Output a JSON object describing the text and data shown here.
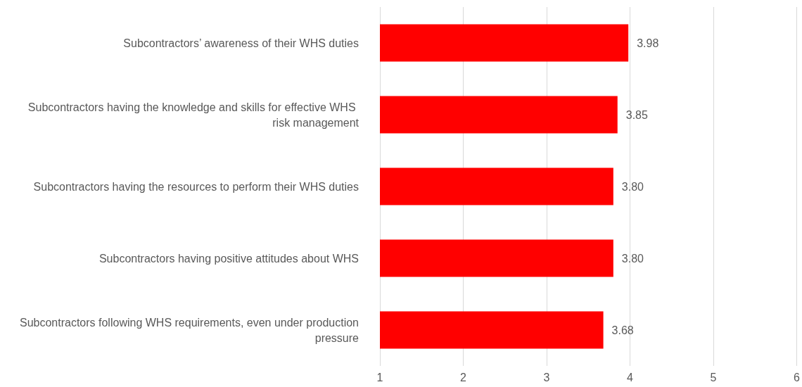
{
  "chart_data": {
    "type": "bar",
    "orientation": "horizontal",
    "categories": [
      "Subcontractors’ awareness of their WHS duties",
      "Subcontractors having the knowledge and skills for effective WHS risk management",
      "Subcontractors having the resources to perform their WHS duties",
      "Subcontractors having positive attitudes about WHS",
      "Subcontractors following WHS requirements, even under production pressure"
    ],
    "values": [
      3.98,
      3.85,
      3.8,
      3.8,
      3.68
    ],
    "value_labels": [
      "3.98",
      "3.85",
      "3.80",
      "3.80",
      "3.68"
    ],
    "color": "#ff0000",
    "xlim": [
      1,
      6
    ],
    "xticks": [
      1,
      2,
      3,
      4,
      5,
      6
    ],
    "grid": "x"
  }
}
